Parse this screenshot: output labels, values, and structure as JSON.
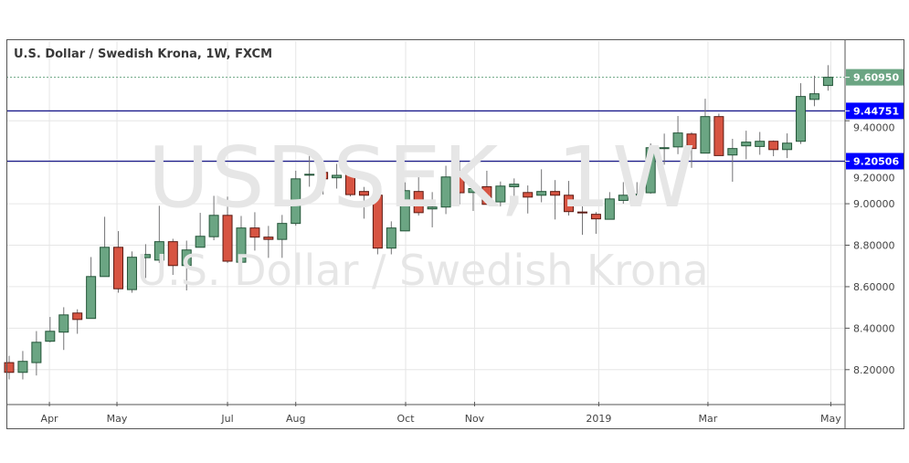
{
  "header": {
    "title": "U.S. Dollar / Swedish Krona, 1W, FXCM"
  },
  "watermark": {
    "symbol": "USDSEK, 1W",
    "name": "U.S. Dollar / Swedish Krona"
  },
  "colors": {
    "up_body": "#6ba583",
    "up_border": "#225437",
    "down_body": "#d75442",
    "down_border": "#5b1a13",
    "wick": "#737375",
    "level_line": "#1c1c8c",
    "level_label": "#0000ff",
    "last_label": "#6ba583",
    "grid": "#e6e6e6"
  },
  "chart_data": {
    "type": "candlestick",
    "title": "U.S. Dollar / Swedish Krona, 1W, FXCM",
    "ylim": [
      8.045,
      9.784
    ],
    "y_ticks": [
      "8.20000",
      "8.40000",
      "8.60000",
      "8.80000",
      "9.00000",
      "9.20000",
      "9.40000"
    ],
    "x_ticks": [
      {
        "label": "Apr",
        "index": 2.95
      },
      {
        "label": "May",
        "index": 7.9
      },
      {
        "label": "Jul",
        "index": 16.0
      },
      {
        "label": "Aug",
        "index": 21.0
      },
      {
        "label": "Oct",
        "index": 29.05
      },
      {
        "label": "Nov",
        "index": 34.1
      },
      {
        "label": "2019",
        "index": 43.2
      },
      {
        "label": "Mar",
        "index": 51.2
      },
      {
        "label": "May",
        "index": 60.2
      }
    ],
    "last_price": {
      "value": 9.6095,
      "label": "9.60950"
    },
    "levels": [
      {
        "value": 9.44751,
        "label": "9.44751"
      },
      {
        "value": 9.20506,
        "label": "9.20506"
      }
    ],
    "ohlc": [
      [
        8.234,
        8.267,
        8.153,
        8.187
      ],
      [
        8.187,
        8.29,
        8.153,
        8.24
      ],
      [
        8.234,
        8.386,
        8.172,
        8.332
      ],
      [
        8.337,
        8.454,
        8.332,
        8.385
      ],
      [
        8.381,
        8.501,
        8.295,
        8.464
      ],
      [
        8.473,
        8.491,
        8.373,
        8.442
      ],
      [
        8.447,
        8.743,
        8.447,
        8.649
      ],
      [
        8.649,
        8.937,
        8.649,
        8.79
      ],
      [
        8.79,
        8.868,
        8.571,
        8.59
      ],
      [
        8.586,
        8.77,
        8.571,
        8.742
      ],
      [
        8.74,
        8.805,
        8.642,
        8.755
      ],
      [
        8.728,
        8.99,
        8.714,
        8.817
      ],
      [
        8.817,
        8.831,
        8.657,
        8.702
      ],
      [
        8.702,
        8.822,
        8.582,
        8.777
      ],
      [
        8.79,
        8.956,
        8.79,
        8.843
      ],
      [
        8.841,
        9.038,
        8.824,
        8.944
      ],
      [
        8.944,
        9.034,
        8.714,
        8.723
      ],
      [
        8.718,
        8.941,
        8.681,
        8.883
      ],
      [
        8.883,
        8.959,
        8.774,
        8.839
      ],
      [
        8.839,
        8.893,
        8.739,
        8.828
      ],
      [
        8.828,
        8.946,
        8.739,
        8.905
      ],
      [
        8.905,
        9.159,
        8.894,
        9.12
      ],
      [
        9.141,
        9.25,
        9.082,
        9.142
      ],
      [
        9.151,
        9.201,
        9.044,
        9.12
      ],
      [
        9.125,
        9.192,
        9.073,
        9.137
      ],
      [
        9.147,
        9.161,
        9.035,
        9.044
      ],
      [
        9.059,
        9.081,
        8.928,
        9.041
      ],
      [
        9.041,
        9.056,
        8.756,
        8.786
      ],
      [
        8.786,
        8.915,
        8.756,
        8.883
      ],
      [
        8.869,
        9.103,
        8.869,
        9.063
      ],
      [
        9.059,
        9.148,
        8.943,
        8.957
      ],
      [
        8.975,
        9.056,
        8.886,
        8.984
      ],
      [
        8.984,
        9.183,
        8.95,
        9.129
      ],
      [
        9.139,
        9.203,
        8.997,
        9.053
      ],
      [
        9.054,
        9.1,
        8.965,
        9.073
      ],
      [
        9.082,
        9.159,
        8.997,
        8.997
      ],
      [
        9.009,
        9.107,
        8.987,
        9.085
      ],
      [
        9.082,
        9.122,
        9.004,
        9.094
      ],
      [
        9.054,
        9.088,
        8.953,
        9.032
      ],
      [
        9.041,
        9.166,
        9.007,
        9.059
      ],
      [
        9.059,
        9.114,
        8.924,
        9.041
      ],
      [
        9.041,
        9.11,
        8.943,
        8.962
      ],
      [
        8.96,
        9.078,
        8.85,
        8.957
      ],
      [
        8.949,
        8.96,
        8.855,
        8.927
      ],
      [
        8.925,
        9.056,
        8.924,
        9.023
      ],
      [
        9.016,
        9.104,
        9.0,
        9.041
      ],
      [
        9.044,
        9.104,
        9.012,
        9.046
      ],
      [
        9.053,
        9.291,
        9.048,
        9.27
      ],
      [
        9.269,
        9.338,
        9.188,
        9.27
      ],
      [
        9.274,
        9.423,
        9.239,
        9.341
      ],
      [
        9.336,
        9.345,
        9.173,
        9.266
      ],
      [
        9.244,
        9.506,
        9.244,
        9.42
      ],
      [
        9.42,
        9.434,
        9.232,
        9.232
      ],
      [
        9.235,
        9.313,
        9.106,
        9.266
      ],
      [
        9.279,
        9.352,
        9.214,
        9.297
      ],
      [
        9.276,
        9.346,
        9.236,
        9.301
      ],
      [
        9.301,
        9.305,
        9.229,
        9.261
      ],
      [
        9.261,
        9.339,
        9.22,
        9.292
      ],
      [
        9.301,
        9.581,
        9.288,
        9.517
      ],
      [
        9.503,
        9.617,
        9.47,
        9.53
      ],
      [
        9.57,
        9.668,
        9.545,
        9.6095
      ]
    ]
  }
}
